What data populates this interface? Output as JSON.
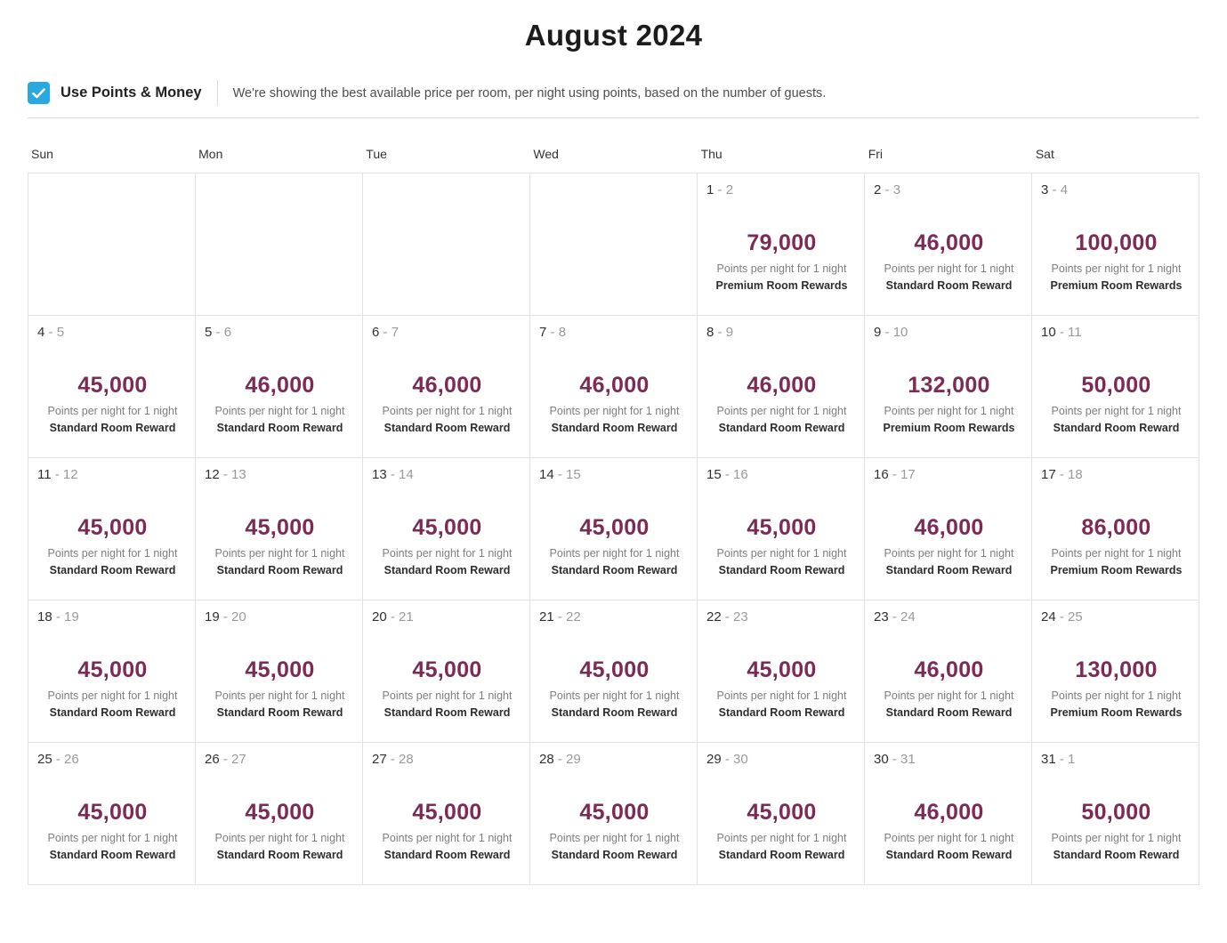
{
  "page": {
    "title": "August 2024"
  },
  "controls": {
    "checkbox_checked": true,
    "checkbox_label": "Use Points & Money",
    "description": "We're showing the best available price per room, per night using points, based on the number of guests."
  },
  "colors": {
    "accent_blue": "#2aa9e0",
    "points_plum": "#7c2b57",
    "grid_border": "#e2e2e2"
  },
  "calendar": {
    "day_headers": [
      "Sun",
      "Mon",
      "Tue",
      "Wed",
      "Thu",
      "Fri",
      "Sat"
    ],
    "per_night_label": "Points per night for 1 night",
    "weeks": [
      [
        null,
        null,
        null,
        null,
        {
          "start": "1",
          "end": "2",
          "points": "79,000",
          "reward": "Premium Room Rewards"
        },
        {
          "start": "2",
          "end": "3",
          "points": "46,000",
          "reward": "Standard Room Reward"
        },
        {
          "start": "3",
          "end": "4",
          "points": "100,000",
          "reward": "Premium Room Rewards"
        }
      ],
      [
        {
          "start": "4",
          "end": "5",
          "points": "45,000",
          "reward": "Standard Room Reward"
        },
        {
          "start": "5",
          "end": "6",
          "points": "46,000",
          "reward": "Standard Room Reward"
        },
        {
          "start": "6",
          "end": "7",
          "points": "46,000",
          "reward": "Standard Room Reward"
        },
        {
          "start": "7",
          "end": "8",
          "points": "46,000",
          "reward": "Standard Room Reward"
        },
        {
          "start": "8",
          "end": "9",
          "points": "46,000",
          "reward": "Standard Room Reward"
        },
        {
          "start": "9",
          "end": "10",
          "points": "132,000",
          "reward": "Premium Room Rewards"
        },
        {
          "start": "10",
          "end": "11",
          "points": "50,000",
          "reward": "Standard Room Reward"
        }
      ],
      [
        {
          "start": "11",
          "end": "12",
          "points": "45,000",
          "reward": "Standard Room Reward"
        },
        {
          "start": "12",
          "end": "13",
          "points": "45,000",
          "reward": "Standard Room Reward"
        },
        {
          "start": "13",
          "end": "14",
          "points": "45,000",
          "reward": "Standard Room Reward"
        },
        {
          "start": "14",
          "end": "15",
          "points": "45,000",
          "reward": "Standard Room Reward"
        },
        {
          "start": "15",
          "end": "16",
          "points": "45,000",
          "reward": "Standard Room Reward"
        },
        {
          "start": "16",
          "end": "17",
          "points": "46,000",
          "reward": "Standard Room Reward"
        },
        {
          "start": "17",
          "end": "18",
          "points": "86,000",
          "reward": "Premium Room Rewards"
        }
      ],
      [
        {
          "start": "18",
          "end": "19",
          "points": "45,000",
          "reward": "Standard Room Reward"
        },
        {
          "start": "19",
          "end": "20",
          "points": "45,000",
          "reward": "Standard Room Reward"
        },
        {
          "start": "20",
          "end": "21",
          "points": "45,000",
          "reward": "Standard Room Reward"
        },
        {
          "start": "21",
          "end": "22",
          "points": "45,000",
          "reward": "Standard Room Reward"
        },
        {
          "start": "22",
          "end": "23",
          "points": "45,000",
          "reward": "Standard Room Reward"
        },
        {
          "start": "23",
          "end": "24",
          "points": "46,000",
          "reward": "Standard Room Reward"
        },
        {
          "start": "24",
          "end": "25",
          "points": "130,000",
          "reward": "Premium Room Rewards"
        }
      ],
      [
        {
          "start": "25",
          "end": "26",
          "points": "45,000",
          "reward": "Standard Room Reward"
        },
        {
          "start": "26",
          "end": "27",
          "points": "45,000",
          "reward": "Standard Room Reward"
        },
        {
          "start": "27",
          "end": "28",
          "points": "45,000",
          "reward": "Standard Room Reward"
        },
        {
          "start": "28",
          "end": "29",
          "points": "45,000",
          "reward": "Standard Room Reward"
        },
        {
          "start": "29",
          "end": "30",
          "points": "45,000",
          "reward": "Standard Room Reward"
        },
        {
          "start": "30",
          "end": "31",
          "points": "46,000",
          "reward": "Standard Room Reward"
        },
        {
          "start": "31",
          "end": "1",
          "points": "50,000",
          "reward": "Standard Room Reward"
        }
      ]
    ]
  }
}
